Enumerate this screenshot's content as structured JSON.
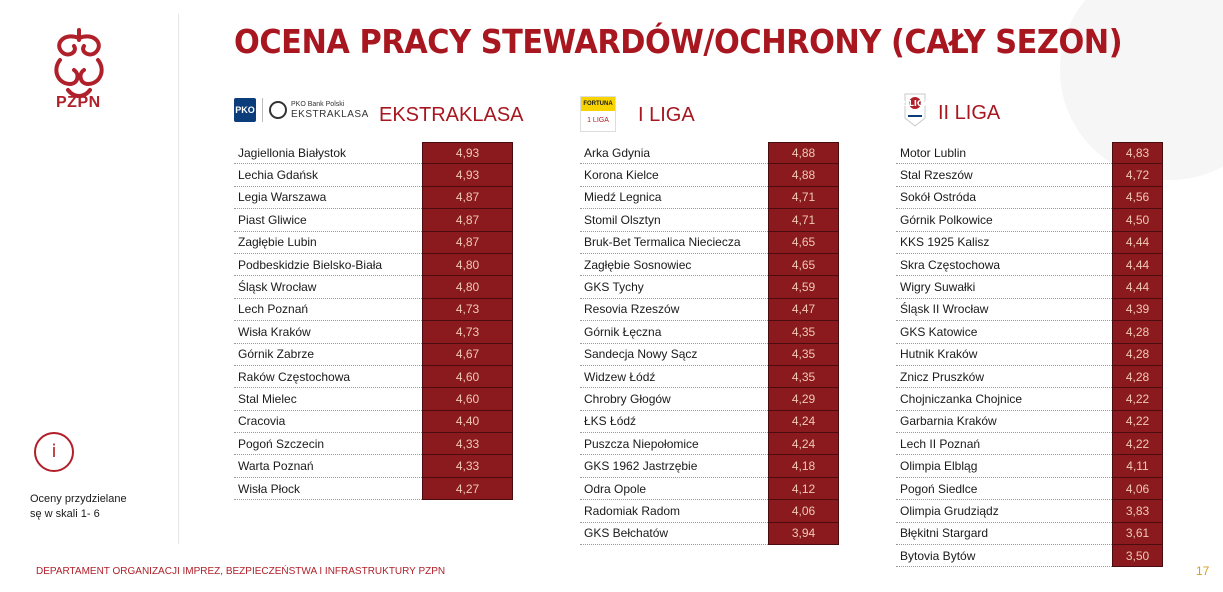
{
  "sidebar": {
    "logo_text": "PZPN",
    "info_icon": "i",
    "info_text_line1": "Oceny przydzielane",
    "info_text_line2": "sę w skali 1- 6"
  },
  "title": "OCENA PRACY STEWARDÓW/OCHRONY (CAŁY SEZON)",
  "leagues": [
    {
      "label": "EKSTRAKLASA",
      "logo_small": "PKO Bank Polski",
      "logo_big": "EKSTRAKLASA",
      "logo_badge": "PKO",
      "rows": [
        {
          "team": "Jagiellonia Białystok",
          "score": "4,93"
        },
        {
          "team": "Lechia Gdańsk",
          "score": "4,93"
        },
        {
          "team": "Legia Warszawa",
          "score": "4,87"
        },
        {
          "team": "Piast Gliwice",
          "score": "4,87"
        },
        {
          "team": "Zagłębie Lubin",
          "score": "4,87"
        },
        {
          "team": "Podbeskidzie Bielsko-Biała",
          "score": "4,80"
        },
        {
          "team": "Śląsk Wrocław",
          "score": "4,80"
        },
        {
          "team": "Lech Poznań",
          "score": "4,73"
        },
        {
          "team": "Wisła Kraków",
          "score": "4,73"
        },
        {
          "team": "Górnik Zabrze",
          "score": "4,67"
        },
        {
          "team": "Raków Częstochowa",
          "score": "4,60"
        },
        {
          "team": "Stal Mielec",
          "score": "4,60"
        },
        {
          "team": "Cracovia",
          "score": "4,40"
        },
        {
          "team": "Pogoń Szczecin",
          "score": "4,33"
        },
        {
          "team": "Warta Poznań",
          "score": "4,33"
        },
        {
          "team": "Wisła Płock",
          "score": "4,27"
        }
      ]
    },
    {
      "label": "I LIGA",
      "logo_top": "FORTUNA",
      "logo_bottom": "1 LIGA",
      "rows": [
        {
          "team": "Arka Gdynia",
          "score": "4,88"
        },
        {
          "team": "Korona Kielce",
          "score": "4,88"
        },
        {
          "team": "Miedź Legnica",
          "score": "4,71"
        },
        {
          "team": "Stomil Olsztyn",
          "score": "4,71"
        },
        {
          "team": "Bruk-Bet Termalica Nieciecza",
          "score": "4,65"
        },
        {
          "team": "Zagłębie Sosnowiec",
          "score": "4,65"
        },
        {
          "team": "GKS Tychy",
          "score": "4,59"
        },
        {
          "team": "Resovia Rzeszów",
          "score": "4,47"
        },
        {
          "team": "Górnik Łęczna",
          "score": "4,35"
        },
        {
          "team": "Sandecja Nowy Sącz",
          "score": "4,35"
        },
        {
          "team": "Widzew Łódź",
          "score": "4,35"
        },
        {
          "team": "Chrobry Głogów",
          "score": "4,29"
        },
        {
          "team": "ŁKS Łódź",
          "score": "4,24"
        },
        {
          "team": "Puszcza Niepołomice",
          "score": "4,24"
        },
        {
          "team": "GKS 1962 Jastrzębie",
          "score": "4,18"
        },
        {
          "team": "Odra Opole",
          "score": "4,12"
        },
        {
          "team": "Radomiak Radom",
          "score": "4,06"
        },
        {
          "team": "GKS Bełchatów",
          "score": "3,94"
        }
      ]
    },
    {
      "label": "II LIGA",
      "logo_text": "2 LIGA",
      "rows": [
        {
          "team": "Motor Lublin",
          "score": "4,83"
        },
        {
          "team": "Stal Rzeszów",
          "score": "4,72"
        },
        {
          "team": "Sokół Ostróda",
          "score": "4,56"
        },
        {
          "team": "Górnik Polkowice",
          "score": "4,50"
        },
        {
          "team": "KKS 1925 Kalisz",
          "score": "4,44"
        },
        {
          "team": "Skra Częstochowa",
          "score": "4,44"
        },
        {
          "team": "Wigry Suwałki",
          "score": "4,44"
        },
        {
          "team": "Śląsk II Wrocław",
          "score": "4,39"
        },
        {
          "team": "GKS Katowice",
          "score": "4,28"
        },
        {
          "team": "Hutnik Kraków",
          "score": "4,28"
        },
        {
          "team": "Znicz Pruszków",
          "score": "4,28"
        },
        {
          "team": "Chojniczanka Chojnice",
          "score": "4,22"
        },
        {
          "team": "Garbarnia Kraków",
          "score": "4,22"
        },
        {
          "team": "Lech II Poznań",
          "score": "4,22"
        },
        {
          "team": "Olimpia Elbląg",
          "score": "4,11"
        },
        {
          "team": "Pogoń Siedlce",
          "score": "4,06"
        },
        {
          "team": "Olimpia Grudziądz",
          "score": "3,83"
        },
        {
          "team": "Błękitni Stargard",
          "score": "3,61"
        },
        {
          "team": "Bytovia Bytów",
          "score": "3,50"
        }
      ]
    }
  ],
  "footer": "DEPARTAMENT ORGANIZACJI IMPREZ, BEZPIECZEŃSTWA I INFRASTRUKTURY PZPN",
  "page_number": "17"
}
